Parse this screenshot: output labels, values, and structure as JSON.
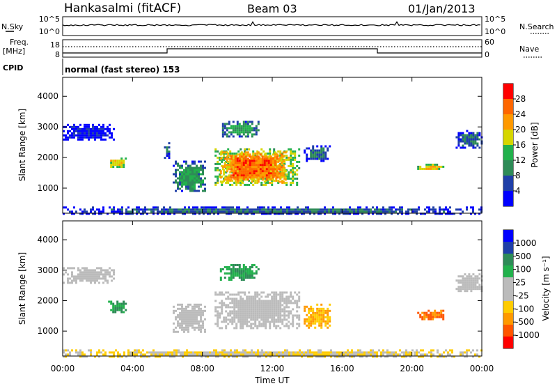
{
  "header": {
    "station": "Hankasalmi (fitACF)",
    "beam": "Beam 03",
    "date": "01/Jan/2013"
  },
  "top_panels": {
    "nsky_label": "N.Sky",
    "nsearch_label": "N.Search",
    "freq_label_1": "Freq.",
    "freq_label_2": "[MHz]",
    "nave_label": "Nave",
    "cpid_label": "CPID",
    "cpid_text": "normal (fast stereo) 153",
    "noise_left_ticks": [
      "10^5",
      "10^0"
    ],
    "noise_right_ticks": [
      "10^5",
      "10^0"
    ],
    "freq_ticks": [
      "18",
      "8"
    ],
    "nave_ticks": [
      "60",
      "0"
    ]
  },
  "colors": {
    "power_scale": [
      "#0000ff",
      "#1f3fa8",
      "#2e8b57",
      "#22b14c",
      "#d6d600",
      "#ff9900",
      "#ff6600",
      "#ff0000"
    ],
    "velocity_scale": [
      "#ff0000",
      "#ff5500",
      "#ff9900",
      "#ffcc00",
      "#bbbbbb",
      "#bbbbbb",
      "#22b14c",
      "#2e8b57",
      "#1f3fa8",
      "#0000ff"
    ]
  },
  "chart_data": [
    {
      "type": "heatmap",
      "title": "",
      "xlabel": "Time UT",
      "ylabel": "Slant Range [km]",
      "x_ticks": [
        "00:00",
        "04:00",
        "08:00",
        "12:00",
        "16:00",
        "20:00",
        "00:00"
      ],
      "y_ticks": [
        "1000",
        "2000",
        "3000",
        "4000"
      ],
      "xlim": [
        0,
        24
      ],
      "ylim": [
        180,
        4620
      ],
      "colorbar_label": "Power [dB]",
      "colorbar_ticks": [
        "4",
        "8",
        "12",
        "16",
        "20",
        "24",
        "28"
      ],
      "regions": [
        {
          "t0": 0.0,
          "t1": 2.9,
          "r0": 2600,
          "r1": 3100,
          "level": 4
        },
        {
          "t0": 2.6,
          "t1": 3.6,
          "r0": 1700,
          "r1": 2000,
          "level": 20
        },
        {
          "t0": 5.8,
          "t1": 6.1,
          "r0": 2000,
          "r1": 2500,
          "level": 8
        },
        {
          "t0": 6.3,
          "t1": 8.2,
          "r0": 900,
          "r1": 1900,
          "level": 12
        },
        {
          "t0": 8.7,
          "t1": 13.5,
          "r0": 1100,
          "r1": 2300,
          "level": 20
        },
        {
          "t0": 9.0,
          "t1": 12.8,
          "r0": 1200,
          "r1": 2200,
          "level": 26
        },
        {
          "t0": 9.0,
          "t1": 11.2,
          "r0": 2700,
          "r1": 3200,
          "level": 12
        },
        {
          "t0": 13.8,
          "t1": 15.3,
          "r0": 1900,
          "r1": 2400,
          "level": 8
        },
        {
          "t0": 20.3,
          "t1": 21.8,
          "r0": 1600,
          "r1": 1800,
          "level": 20
        },
        {
          "t0": 22.5,
          "t1": 24.0,
          "r0": 2300,
          "r1": 2900,
          "level": 8
        },
        {
          "t0": 0.0,
          "t1": 24.0,
          "r0": 180,
          "r1": 400,
          "level": 8
        }
      ]
    },
    {
      "type": "heatmap",
      "title": "",
      "xlabel": "Time UT",
      "ylabel": "Slant Range [km]",
      "x_ticks": [
        "00:00",
        "04:00",
        "08:00",
        "12:00",
        "16:00",
        "20:00",
        "00:00"
      ],
      "y_ticks": [
        "1000",
        "2000",
        "3000",
        "4000"
      ],
      "xlim": [
        0,
        24
      ],
      "ylim": [
        180,
        4620
      ],
      "colorbar_label": "Velocity [m s⁻¹]",
      "colorbar_ticks": [
        "-1000",
        "-500",
        "-100",
        "-25",
        "25",
        "100",
        "500",
        "1000"
      ],
      "regions": [
        {
          "t0": 0.0,
          "t1": 2.9,
          "r0": 2600,
          "r1": 3100,
          "level": 0
        },
        {
          "t0": 2.6,
          "t1": 3.6,
          "r0": 1600,
          "r1": 2000,
          "level": 100
        },
        {
          "t0": 6.3,
          "t1": 8.2,
          "r0": 1000,
          "r1": 1900,
          "level": 0
        },
        {
          "t0": 8.7,
          "t1": 13.5,
          "r0": 1100,
          "r1": 2300,
          "level": 0
        },
        {
          "t0": 9.0,
          "t1": 11.2,
          "r0": 2700,
          "r1": 3200,
          "level": 100
        },
        {
          "t0": 13.8,
          "t1": 15.3,
          "r0": 1100,
          "r1": 1900,
          "level": -100
        },
        {
          "t0": 20.3,
          "t1": 21.8,
          "r0": 1400,
          "r1": 1700,
          "level": -500
        },
        {
          "t0": 22.5,
          "t1": 24.0,
          "r0": 2300,
          "r1": 2900,
          "level": 0
        },
        {
          "t0": 0.0,
          "t1": 24.0,
          "r0": 180,
          "r1": 400,
          "level": -25
        }
      ]
    }
  ]
}
